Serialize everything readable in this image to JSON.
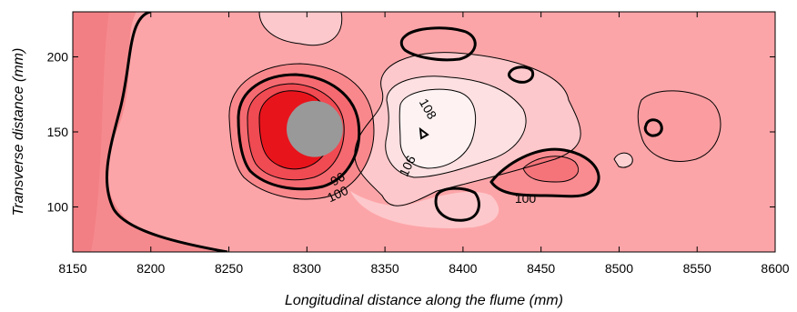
{
  "chart_data": {
    "type": "contour",
    "xlabel": "Longitudinal distance along the flume (mm)",
    "ylabel": "Transverse distance (mm)",
    "xlim": [
      8150,
      8600
    ],
    "ylim": [
      70,
      230
    ],
    "x_ticks": [
      8150,
      8200,
      8250,
      8300,
      8350,
      8400,
      8450,
      8500,
      8550,
      8600
    ],
    "y_ticks": [
      100,
      150,
      200
    ],
    "x_tick_labels": [
      "8150",
      "8200",
      "8250",
      "8300",
      "8350",
      "8400",
      "8450",
      "8500",
      "8550",
      "8600"
    ],
    "y_tick_labels": [
      "100",
      "150",
      "200"
    ],
    "contour_labels": [
      {
        "text": "108",
        "x": 8377,
        "y": 165
      },
      {
        "text": "106",
        "x": 8365,
        "y": 127
      },
      {
        "text": "96",
        "x": 8320,
        "y": 118
      },
      {
        "text": "100",
        "x": 8320,
        "y": 108
      },
      {
        "text": "100",
        "x": 8440,
        "y": 105
      }
    ],
    "pier": {
      "x": 8305,
      "y": 152,
      "radius": 18
    },
    "colors": {
      "background": "#fca5a8",
      "low": "#f58a8e",
      "light": "#fdc8cb",
      "lighter": "#fde0e1",
      "lightest": "#fef2f2",
      "high1": "#f9888c",
      "high2": "#f56a70",
      "high3": "#f04a52",
      "core": "#e8141c",
      "pier": "#999999",
      "line": "#000000"
    }
  }
}
